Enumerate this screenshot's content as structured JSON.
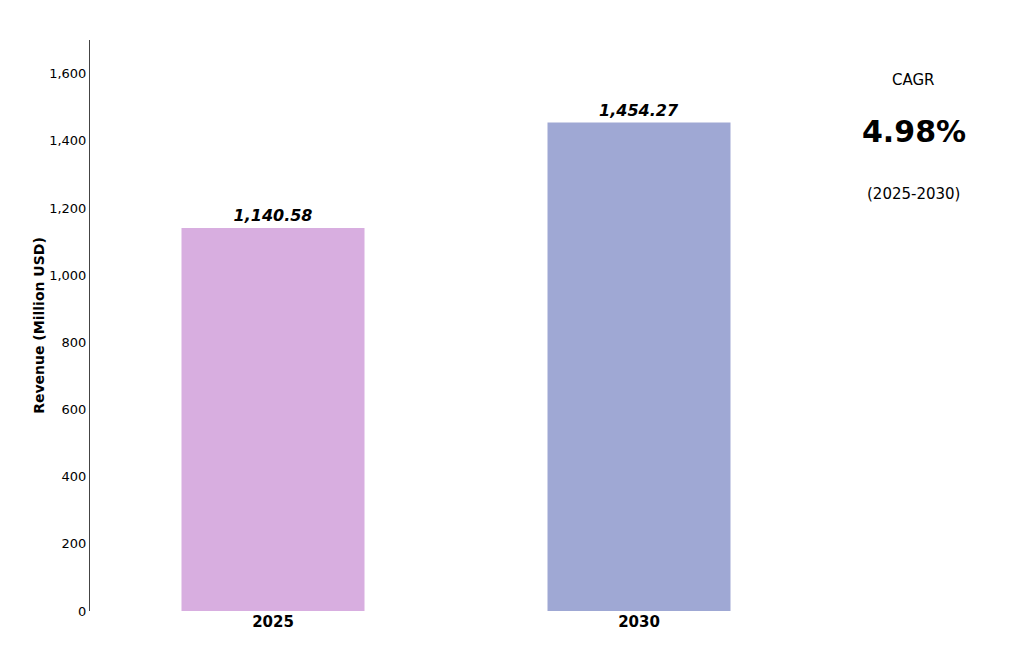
{
  "chart_data": {
    "type": "bar",
    "categories": [
      "2025",
      "2030"
    ],
    "values": [
      1140.58,
      1454.27
    ],
    "value_labels": [
      "1,140.58",
      "1,454.27"
    ],
    "colors": [
      "#d8aee0",
      "#9fa8d4"
    ],
    "ylabel": "Revenue (Million USD)",
    "ylim": [
      0,
      1700
    ],
    "yticks": [
      0,
      200,
      400,
      600,
      800,
      {
        "value": 1000,
        "label": "1,000"
      },
      {
        "value": 1200,
        "label": "1,200"
      },
      {
        "value": 1400,
        "label": "1,400"
      },
      {
        "value": 1600,
        "label": "1,600"
      }
    ],
    "grid": false,
    "data_labels": true,
    "annotations": [
      "CAGR",
      "4.98%",
      "(2025-2030)"
    ]
  }
}
